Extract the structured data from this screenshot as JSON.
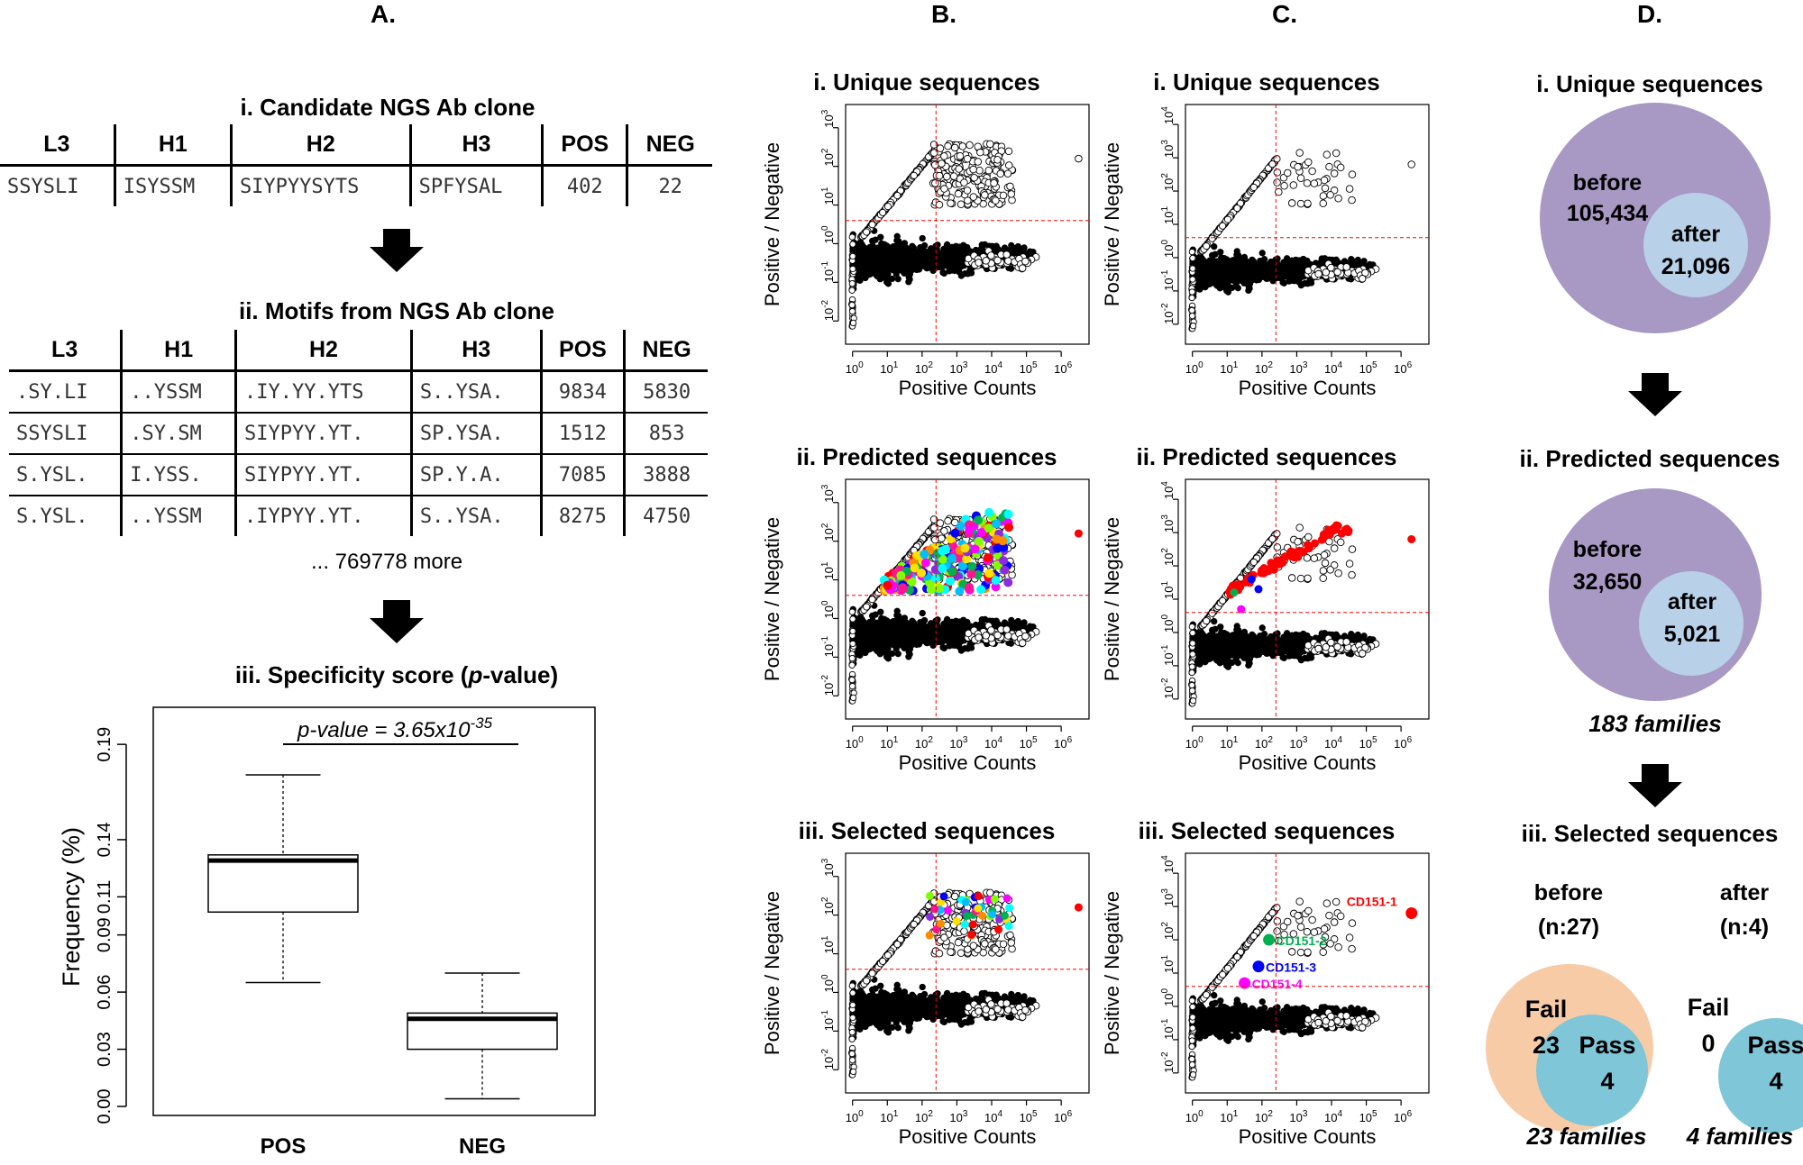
{
  "panel_a": {
    "letter": "A.",
    "table1": {
      "title": "i. Candidate NGS Ab clone",
      "headers": [
        "L3",
        "H1",
        "H2",
        "H3",
        "POS",
        "NEG"
      ],
      "rows": [
        [
          "SSYSLI",
          "ISYSSM",
          "SIYPYYSYTS",
          "SPFYSAL",
          "402",
          "22"
        ]
      ]
    },
    "table2": {
      "title": "ii. Motifs from NGS Ab clone",
      "headers": [
        "L3",
        "H1",
        "H2",
        "H3",
        "POS",
        "NEG"
      ],
      "rows": [
        [
          ".SY.LI",
          "..YSSM",
          ".IY.YY.YTS",
          "S..YSA.",
          "9834",
          "5830"
        ],
        [
          "SSYSLI",
          ".SY.SM",
          "SIYPYY.YT.",
          "SP.YSA.",
          "1512",
          "853"
        ],
        [
          "S.YSL.",
          "I.YSS.",
          "SIYPYY.YT.",
          "SP.Y.A.",
          "7085",
          "3888"
        ],
        [
          "S.YSL.",
          "..YSSM",
          ".IYPYY.YT.",
          "S..YSA.",
          "8275",
          "4750"
        ]
      ],
      "more": "... 769778 more"
    },
    "boxplot": {
      "title_prefix": "iii. Specificity score (",
      "title_italic": "p",
      "title_suffix": "-value)",
      "pvalue_text": "p-value = 3.65x10",
      "pvalue_exp": "-35",
      "ylabel": "Frequency (%)"
    }
  },
  "panel_b": {
    "letter": "B."
  },
  "panel_c": {
    "letter": "C."
  },
  "panel_d": {
    "letter": "D.",
    "i": {
      "title": "i. Unique sequences",
      "before_label": "before",
      "before_value": "105,434",
      "after_label": "after",
      "after_value": "21,096"
    },
    "ii": {
      "title": "ii. Predicted sequences",
      "before_label": "before",
      "before_value": "32,650",
      "after_label": "after",
      "after_value": "5,021",
      "families": "183 families"
    },
    "iii": {
      "title": "iii. Selected sequences",
      "before_label": "before",
      "before_n": "(n:27)",
      "after_label": "after",
      "after_n": "(n:4)",
      "fail_label": "Fail",
      "before_fail": "23",
      "after_fail": "0",
      "pass_label": "Pass",
      "before_pass": "4",
      "after_pass": "4",
      "before_families": "23 families",
      "after_families": "4 families"
    }
  },
  "scatter_common": {
    "ylabel": "Positive / Negative",
    "xlabel": "Positive Counts",
    "x_ticks": [
      "10",
      "10",
      "10",
      "10",
      "10",
      "10",
      "10"
    ],
    "x_tick_exps": [
      "0",
      "1",
      "2",
      "3",
      "4",
      "5",
      "6"
    ]
  },
  "colors": {
    "purple": "#a898c4",
    "lightblue": "#b8d0e8",
    "peach": "#f7cba6",
    "teal": "#7ec6d8",
    "red": "#ff0000",
    "green": "#00b050",
    "blue": "#0000ff",
    "magenta": "#ff00ff"
  },
  "chart_data": [
    {
      "type": "boxplot",
      "title": "iii. Specificity score (p-value)",
      "ylabel": "Frequency (%)",
      "categories": [
        "POS",
        "NEG"
      ],
      "y_ticks": [
        "0.00",
        "0.03",
        "0.06",
        "0.09",
        "0.11",
        "0.14",
        "0.19"
      ],
      "ylim": [
        0,
        0.2
      ],
      "boxes": [
        {
          "name": "POS",
          "min": 0.065,
          "q1": 0.102,
          "median": 0.129,
          "q3": 0.132,
          "max": 0.174
        },
        {
          "name": "NEG",
          "min": 0.004,
          "q1": 0.03,
          "median": 0.046,
          "q3": 0.049,
          "max": 0.07
        }
      ]
    },
    {
      "type": "scatter",
      "panels": [
        {
          "id": "B-i",
          "title": "i. Unique sequences",
          "y_exps": [
            "-2",
            "-1",
            "0",
            "1",
            "2",
            "3"
          ],
          "ymin": -2.6,
          "ymax": 3.6,
          "highlight": "none"
        },
        {
          "id": "B-ii",
          "title": "ii. Predicted sequences",
          "y_exps": [
            "-2",
            "-1",
            "0",
            "1",
            "2",
            "3"
          ],
          "ymin": -2.6,
          "ymax": 3.6,
          "highlight": "rainbow"
        },
        {
          "id": "B-iii",
          "title": "iii. Selected sequences",
          "y_exps": [
            "-2",
            "-1",
            "0",
            "1",
            "2",
            "3"
          ],
          "ymin": -2.6,
          "ymax": 3.6,
          "highlight": "selected"
        },
        {
          "id": "C-i",
          "title": "i. Unique sequences",
          "y_exps": [
            "-2",
            "-1",
            "0",
            "1",
            "2",
            "3",
            "4"
          ],
          "ymin": -2.6,
          "ymax": 4.6,
          "highlight": "none"
        },
        {
          "id": "C-ii",
          "title": "ii. Predicted sequences",
          "y_exps": [
            "-2",
            "-1",
            "0",
            "1",
            "2",
            "3",
            "4"
          ],
          "ymin": -2.6,
          "ymax": 4.6,
          "highlight": "red"
        },
        {
          "id": "C-iii",
          "title": "iii. Selected sequences",
          "y_exps": [
            "-2",
            "-1",
            "0",
            "1",
            "2",
            "3",
            "4"
          ],
          "ymin": -2.6,
          "ymax": 4.6,
          "highlight": "labels"
        }
      ],
      "x_range_log10": [
        -0.2,
        6.8
      ],
      "threshold_x_log10": 2.4,
      "threshold_y_log10": 0.6,
      "labeled_points": [
        {
          "label": "CD151-1",
          "x_log10": 6.3,
          "y_log10": 2.8,
          "color": "#ff0000"
        },
        {
          "label": "CD151-2",
          "x_log10": 2.2,
          "y_log10": 2.0,
          "color": "#00b050"
        },
        {
          "label": "CD151-3",
          "x_log10": 1.9,
          "y_log10": 1.2,
          "color": "#0000ff"
        },
        {
          "label": "CD151-4",
          "x_log10": 1.5,
          "y_log10": 0.7,
          "color": "#ff00ff"
        }
      ]
    }
  ]
}
